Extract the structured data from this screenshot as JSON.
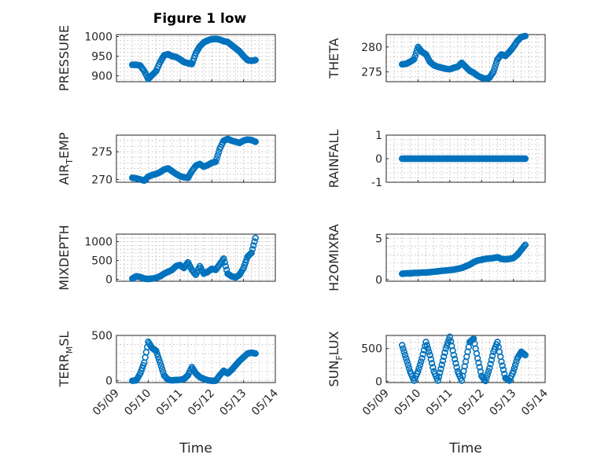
{
  "figure": {
    "title": "Figure 1 low",
    "marker_color": "#0072BD",
    "axis_color": "#262626",
    "grid": true
  },
  "chart_data": [
    {
      "type": "scatter",
      "name": "pressure",
      "title": "Figure 1 low",
      "ylabel": "PRESSURE",
      "ylim": [
        885,
        1005
      ],
      "yticks": [
        900,
        950,
        1000
      ],
      "xlim": [
        "05/09",
        "05/14"
      ],
      "xticks": [
        "05/09",
        "05/10",
        "05/11",
        "05/12",
        "05/13",
        "05/14"
      ],
      "xlabel": "",
      "series": [
        {
          "x": [
            "05/09 12:00",
            "05/09 15:00",
            "05/09 18:00",
            "05/09 21:00",
            "05/10 00:00",
            "05/10 03:00",
            "05/10 06:00",
            "05/10 09:00",
            "05/10 12:00",
            "05/10 15:00",
            "05/10 18:00",
            "05/10 21:00",
            "05/11 00:00",
            "05/11 03:00",
            "05/11 06:00",
            "05/11 09:00",
            "05/11 12:00",
            "05/11 15:00",
            "05/11 18:00",
            "05/11 21:00",
            "05/12 00:00",
            "05/12 03:00",
            "05/12 06:00",
            "05/12 09:00",
            "05/12 12:00",
            "05/12 15:00",
            "05/12 18:00",
            "05/12 21:00",
            "05/13 00:00",
            "05/13 03:00",
            "05/13 06:00",
            "05/13 09:00"
          ],
          "values": [
            928,
            928,
            926,
            912,
            892,
            902,
            912,
            935,
            952,
            955,
            950,
            948,
            942,
            935,
            932,
            930,
            958,
            975,
            985,
            990,
            993,
            994,
            992,
            988,
            986,
            978,
            970,
            962,
            950,
            940,
            938,
            940
          ]
        }
      ]
    },
    {
      "type": "scatter",
      "name": "theta",
      "ylabel": "THETA",
      "ylim": [
        273,
        282.5
      ],
      "yticks": [
        275,
        280
      ],
      "xlim": [
        "05/09",
        "05/14"
      ],
      "xticks": [
        "05/09",
        "05/10",
        "05/11",
        "05/12",
        "05/13",
        "05/14"
      ],
      "xlabel": "",
      "series": [
        {
          "x": [
            "05/09 12:00",
            "05/09 15:00",
            "05/09 18:00",
            "05/09 21:00",
            "05/10 00:00",
            "05/10 03:00",
            "05/10 06:00",
            "05/10 09:00",
            "05/10 12:00",
            "05/10 15:00",
            "05/10 18:00",
            "05/10 21:00",
            "05/11 00:00",
            "05/11 03:00",
            "05/11 06:00",
            "05/11 09:00",
            "05/11 12:00",
            "05/11 15:00",
            "05/11 18:00",
            "05/11 21:00",
            "05/12 00:00",
            "05/12 03:00",
            "05/12 06:00",
            "05/12 09:00",
            "05/12 12:00",
            "05/12 15:00",
            "05/12 18:00",
            "05/12 21:00",
            "05/13 00:00",
            "05/13 03:00",
            "05/13 06:00",
            "05/13 09:00"
          ],
          "values": [
            276.5,
            276.6,
            277.0,
            277.5,
            280.0,
            279.0,
            278.5,
            277.0,
            276.3,
            276.0,
            275.8,
            275.6,
            275.5,
            275.8,
            276.0,
            276.8,
            276.0,
            275.2,
            274.8,
            274.2,
            273.8,
            273.6,
            273.8,
            275.0,
            277.5,
            278.5,
            278.2,
            279.0,
            280.0,
            281.2,
            282.0,
            282.2
          ]
        }
      ]
    },
    {
      "type": "scatter",
      "name": "air-temp",
      "ylabel": "AIR_TEMP",
      "ylim": [
        269.5,
        278
      ],
      "yticks": [
        270,
        275
      ],
      "xlim": [
        "05/09",
        "05/14"
      ],
      "xticks": [
        "05/09",
        "05/10",
        "05/11",
        "05/12",
        "05/13",
        "05/14"
      ],
      "xlabel": "",
      "series": [
        {
          "x": [
            "05/09 12:00",
            "05/09 15:00",
            "05/09 18:00",
            "05/09 21:00",
            "05/10 00:00",
            "05/10 03:00",
            "05/10 06:00",
            "05/10 09:00",
            "05/10 12:00",
            "05/10 15:00",
            "05/10 18:00",
            "05/10 21:00",
            "05/11 00:00",
            "05/11 03:00",
            "05/11 06:00",
            "05/11 09:00",
            "05/11 12:00",
            "05/11 15:00",
            "05/11 18:00",
            "05/11 21:00",
            "05/12 00:00",
            "05/12 03:00",
            "05/12 06:00",
            "05/12 09:00",
            "05/12 12:00",
            "05/12 15:00",
            "05/12 18:00",
            "05/12 21:00",
            "05/13 00:00",
            "05/13 03:00",
            "05/13 06:00",
            "05/13 09:00"
          ],
          "values": [
            270.3,
            270.2,
            270.0,
            269.8,
            270.5,
            270.8,
            271.0,
            271.3,
            271.8,
            272.0,
            271.5,
            271.0,
            270.6,
            270.4,
            270.3,
            271.5,
            272.5,
            272.8,
            272.3,
            272.6,
            273.0,
            273.2,
            275.5,
            277.0,
            277.3,
            277.0,
            276.8,
            276.6,
            277.0,
            277.2,
            277.1,
            276.8
          ]
        }
      ]
    },
    {
      "type": "scatter",
      "name": "rainfall",
      "ylabel": "RAINFALL",
      "ylim": [
        -1,
        1
      ],
      "yticks": [
        -1,
        0,
        1
      ],
      "xlim": [
        "05/09",
        "05/14"
      ],
      "xticks": [
        "05/09",
        "05/10",
        "05/11",
        "05/12",
        "05/13",
        "05/14"
      ],
      "xlabel": "",
      "series": [
        {
          "x": [
            "05/09 12:00",
            "05/09 15:00",
            "05/09 18:00",
            "05/09 21:00",
            "05/10 00:00",
            "05/10 03:00",
            "05/10 06:00",
            "05/10 09:00",
            "05/10 12:00",
            "05/10 15:00",
            "05/10 18:00",
            "05/10 21:00",
            "05/11 00:00",
            "05/11 03:00",
            "05/11 06:00",
            "05/11 09:00",
            "05/11 12:00",
            "05/11 15:00",
            "05/11 18:00",
            "05/11 21:00",
            "05/12 00:00",
            "05/12 03:00",
            "05/12 06:00",
            "05/12 09:00",
            "05/12 12:00",
            "05/12 15:00",
            "05/12 18:00",
            "05/12 21:00",
            "05/13 00:00",
            "05/13 03:00",
            "05/13 06:00",
            "05/13 09:00"
          ],
          "values": [
            0,
            0,
            0,
            0,
            0,
            0,
            0,
            0,
            0,
            0,
            0,
            0,
            0,
            0,
            0,
            0,
            0,
            0,
            0,
            0,
            0,
            0,
            0,
            0,
            0,
            0,
            0,
            0,
            0,
            0,
            0,
            0
          ]
        }
      ]
    },
    {
      "type": "scatter",
      "name": "mixdepth",
      "ylabel": "MIXDEPTH",
      "ylim": [
        -50,
        1200
      ],
      "yticks": [
        0,
        500,
        1000
      ],
      "xlim": [
        "05/09",
        "05/14"
      ],
      "xticks": [
        "05/09",
        "05/10",
        "05/11",
        "05/12",
        "05/13",
        "05/14"
      ],
      "xlabel": "",
      "series": [
        {
          "x": [
            "05/09 12:00",
            "05/09 15:00",
            "05/09 18:00",
            "05/09 21:00",
            "05/10 00:00",
            "05/10 03:00",
            "05/10 06:00",
            "05/10 09:00",
            "05/10 12:00",
            "05/10 15:00",
            "05/10 18:00",
            "05/10 21:00",
            "05/11 00:00",
            "05/11 03:00",
            "05/11 06:00",
            "05/11 09:00",
            "05/11 12:00",
            "05/11 15:00",
            "05/11 18:00",
            "05/11 21:00",
            "05/12 00:00",
            "05/12 03:00",
            "05/12 06:00",
            "05/12 09:00",
            "05/12 12:00",
            "05/12 15:00",
            "05/12 18:00",
            "05/12 21:00",
            "05/13 00:00",
            "05/13 03:00",
            "05/13 06:00",
            "05/13 09:00"
          ],
          "values": [
            20,
            80,
            60,
            20,
            10,
            20,
            40,
            80,
            150,
            200,
            250,
            350,
            380,
            300,
            450,
            250,
            120,
            350,
            150,
            200,
            280,
            250,
            400,
            550,
            150,
            80,
            50,
            120,
            300,
            600,
            700,
            1100
          ]
        }
      ]
    },
    {
      "type": "scatter",
      "name": "h2omixra",
      "ylabel": "H2OMIXRA",
      "ylim": [
        -0.2,
        5.5
      ],
      "yticks": [
        0,
        5
      ],
      "xlim": [
        "05/09",
        "05/14"
      ],
      "xticks": [
        "05/09",
        "05/10",
        "05/11",
        "05/12",
        "05/13",
        "05/14"
      ],
      "xlabel": "",
      "series": [
        {
          "x": [
            "05/09 12:00",
            "05/09 15:00",
            "05/09 18:00",
            "05/09 21:00",
            "05/10 00:00",
            "05/10 03:00",
            "05/10 06:00",
            "05/10 09:00",
            "05/10 12:00",
            "05/10 15:00",
            "05/10 18:00",
            "05/10 21:00",
            "05/11 00:00",
            "05/11 03:00",
            "05/11 06:00",
            "05/11 09:00",
            "05/11 12:00",
            "05/11 15:00",
            "05/11 18:00",
            "05/11 21:00",
            "05/12 00:00",
            "05/12 03:00",
            "05/12 06:00",
            "05/12 09:00",
            "05/12 12:00",
            "05/12 15:00",
            "05/12 18:00",
            "05/12 21:00",
            "05/13 00:00",
            "05/13 03:00",
            "05/13 06:00",
            "05/13 09:00"
          ],
          "values": [
            0.7,
            0.75,
            0.75,
            0.8,
            0.8,
            0.85,
            0.85,
            0.9,
            0.95,
            1.0,
            1.05,
            1.1,
            1.15,
            1.2,
            1.3,
            1.4,
            1.6,
            1.8,
            2.1,
            2.3,
            2.4,
            2.5,
            2.55,
            2.6,
            2.7,
            2.5,
            2.45,
            2.5,
            2.6,
            3.0,
            3.6,
            4.2
          ]
        }
      ]
    },
    {
      "type": "scatter",
      "name": "terr-msl",
      "ylabel": "TERR_MSL",
      "ylim": [
        -20,
        500
      ],
      "yticks": [
        0,
        500
      ],
      "xlim": [
        "05/09",
        "05/14"
      ],
      "xticks": [
        "05/09",
        "05/10",
        "05/11",
        "05/12",
        "05/13",
        "05/14"
      ],
      "xlabel": "Time",
      "series": [
        {
          "x": [
            "05/09 12:00",
            "05/09 15:00",
            "05/09 18:00",
            "05/09 21:00",
            "05/10 00:00",
            "05/10 03:00",
            "05/10 06:00",
            "05/10 09:00",
            "05/10 12:00",
            "05/10 15:00",
            "05/10 18:00",
            "05/10 21:00",
            "05/11 00:00",
            "05/11 03:00",
            "05/11 06:00",
            "05/11 09:00",
            "05/11 12:00",
            "05/11 15:00",
            "05/11 18:00",
            "05/11 21:00",
            "05/12 00:00",
            "05/12 03:00",
            "05/12 06:00",
            "05/12 09:00",
            "05/12 12:00",
            "05/12 15:00",
            "05/12 18:00",
            "05/12 21:00",
            "05/13 00:00",
            "05/13 03:00",
            "05/13 06:00",
            "05/13 09:00"
          ],
          "values": [
            0,
            5,
            80,
            200,
            430,
            360,
            330,
            200,
            60,
            10,
            5,
            8,
            10,
            20,
            60,
            150,
            80,
            40,
            20,
            5,
            0,
            0,
            60,
            110,
            80,
            120,
            170,
            220,
            260,
            300,
            310,
            300
          ]
        }
      ]
    },
    {
      "type": "scatter",
      "name": "sun-flux",
      "ylabel": "SUN_FLUX",
      "ylim": [
        -20,
        700
      ],
      "yticks": [
        0,
        500
      ],
      "xlim": [
        "05/09",
        "05/14"
      ],
      "xticks": [
        "05/09",
        "05/10",
        "05/11",
        "05/12",
        "05/13",
        "05/14"
      ],
      "xlabel": "Time",
      "series": [
        {
          "x": [
            "05/09 12:00",
            "05/09 15:00",
            "05/09 18:00",
            "05/09 21:00",
            "05/10 00:00",
            "05/10 03:00",
            "05/10 06:00",
            "05/10 09:00",
            "05/10 12:00",
            "05/10 15:00",
            "05/10 18:00",
            "05/10 21:00",
            "05/11 00:00",
            "05/11 03:00",
            "05/11 06:00",
            "05/11 09:00",
            "05/11 12:00",
            "05/11 15:00",
            "05/11 18:00",
            "05/11 21:00",
            "05/12 00:00",
            "05/12 03:00",
            "05/12 06:00",
            "05/12 09:00",
            "05/12 12:00",
            "05/12 15:00",
            "05/12 18:00",
            "05/12 21:00",
            "05/13 00:00",
            "05/13 03:00",
            "05/13 06:00",
            "05/13 09:00"
          ],
          "values": [
            550,
            350,
            150,
            10,
            150,
            350,
            600,
            400,
            150,
            10,
            250,
            500,
            680,
            400,
            150,
            10,
            300,
            600,
            650,
            350,
            80,
            5,
            200,
            450,
            600,
            300,
            50,
            10,
            150,
            350,
            450,
            400
          ]
        }
      ]
    }
  ]
}
